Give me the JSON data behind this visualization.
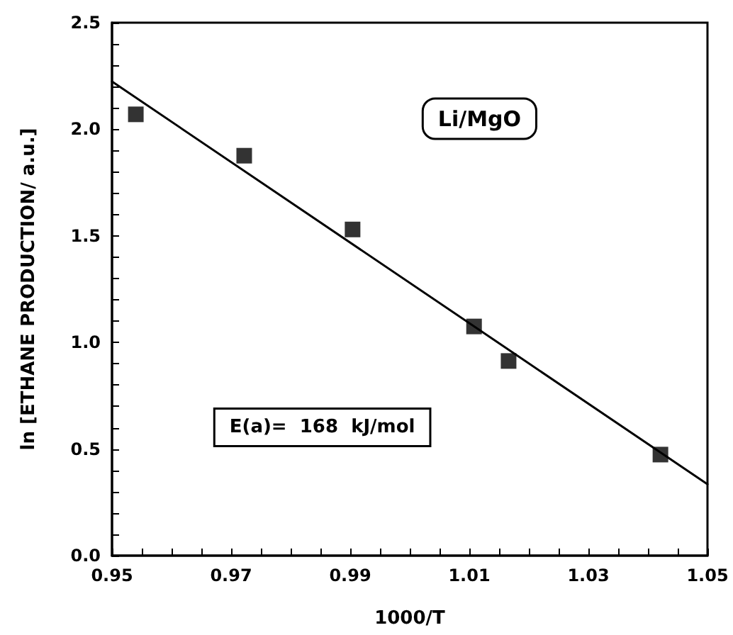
{
  "chart_data": {
    "type": "scatter",
    "xlabel": "1000/T",
    "ylabel": "ln [ETHANE PRODUCTION/ a.u.]",
    "annotations": [
      "Li/MgO",
      "E(a)=  168  kJ/mol"
    ],
    "x": [
      0.954,
      0.9722,
      0.9904,
      1.0108,
      1.0166,
      1.0421
    ],
    "series": [
      {
        "color": "#000000",
        "values": [
          2.07,
          1.876,
          1.53,
          1.075,
          0.913,
          0.474
        ]
      },
      {
        "type": "line",
        "color": "#000000",
        "x": [
          0.95,
          1.05
        ],
        "values": [
          2.224,
          0.335
        ],
        "line_style": "solid",
        "marker": "none"
      }
    ],
    "marker": "square",
    "xlim": [
      0.95,
      1.05
    ],
    "xticks": [
      {
        "value": 0.95,
        "label": "0.95"
      },
      {
        "value": 0.955,
        "label": null
      },
      {
        "value": 0.96,
        "label": null
      },
      {
        "value": 0.965,
        "label": null
      },
      {
        "value": 0.97,
        "label": "0.97"
      },
      {
        "value": 0.975,
        "label": null
      },
      {
        "value": 0.98,
        "label": null
      },
      {
        "value": 0.985,
        "label": null
      },
      {
        "value": 0.99,
        "label": "0.99"
      },
      {
        "value": 0.995,
        "label": null
      },
      {
        "value": 1,
        "label": null
      },
      {
        "value": 1.005,
        "label": null
      },
      {
        "value": 1.01,
        "label": "1.01"
      },
      {
        "value": 1.015,
        "label": null
      },
      {
        "value": 1.02,
        "label": null
      },
      {
        "value": 1.025,
        "label": null
      },
      {
        "value": 1.03,
        "label": "1.03"
      },
      {
        "value": 1.035,
        "label": null
      },
      {
        "value": 1.04,
        "label": null
      },
      {
        "value": 1.045,
        "label": null
      },
      {
        "value": 1.05,
        "label": "1.05"
      }
    ],
    "ylim": [
      0,
      2.5
    ],
    "yticks": [
      {
        "value": 0,
        "label": "0.0"
      },
      {
        "value": 0.1,
        "label": null
      },
      {
        "value": 0.2,
        "label": null
      },
      {
        "value": 0.3,
        "label": null
      },
      {
        "value": 0.4,
        "label": null
      },
      {
        "value": 0.5,
        "label": "0.5"
      },
      {
        "value": 0.6,
        "label": null
      },
      {
        "value": 0.7,
        "label": null
      },
      {
        "value": 0.8,
        "label": null
      },
      {
        "value": 0.9,
        "label": null
      },
      {
        "value": 1,
        "label": "1.0"
      },
      {
        "value": 1.1,
        "label": null
      },
      {
        "value": 1.2,
        "label": null
      },
      {
        "value": 1.3,
        "label": null
      },
      {
        "value": 1.4,
        "label": null
      },
      {
        "value": 1.5,
        "label": "1.5"
      },
      {
        "value": 1.6,
        "label": null
      },
      {
        "value": 1.7,
        "label": null
      },
      {
        "value": 1.8,
        "label": null
      },
      {
        "value": 1.9,
        "label": null
      },
      {
        "value": 2,
        "label": "2.0"
      },
      {
        "value": 2.1,
        "label": null
      },
      {
        "value": 2.2,
        "label": null
      },
      {
        "value": 2.3,
        "label": null
      },
      {
        "value": 2.4,
        "label": null
      },
      {
        "value": 2.5,
        "label": "2.5"
      }
    ],
    "grid": false
  }
}
